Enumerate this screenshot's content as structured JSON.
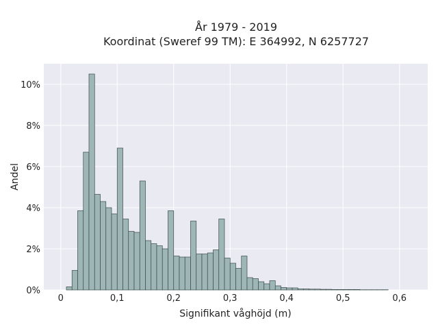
{
  "chart_data": {
    "type": "bar",
    "title": "År 1979 - 2019",
    "subtitle": "Koordinat (Sweref 99 TM): E 364992, N 6257727",
    "xlabel": "Signifikant våghöjd (m)",
    "ylabel": "Andel",
    "xlim": [
      -0.03,
      0.65
    ],
    "ylim": [
      0,
      11
    ],
    "xticks": [
      0,
      0.1,
      0.2,
      0.3,
      0.4,
      0.5,
      0.6
    ],
    "xtick_labels": [
      "0",
      "0,1",
      "0,2",
      "0,3",
      "0,4",
      "0,5",
      "0,6"
    ],
    "yticks": [
      0,
      2,
      4,
      6,
      8,
      10
    ],
    "ytick_labels": [
      "0%",
      "2%",
      "4%",
      "6%",
      "8%",
      "10%"
    ],
    "grid": true,
    "legend": "none",
    "bin_width": 0.01,
    "bin_starts": [
      0.01,
      0.02,
      0.03,
      0.04,
      0.05,
      0.06,
      0.07,
      0.08,
      0.09,
      0.1,
      0.11,
      0.12,
      0.13,
      0.14,
      0.15,
      0.16,
      0.17,
      0.18,
      0.19,
      0.2,
      0.21,
      0.22,
      0.23,
      0.24,
      0.25,
      0.26,
      0.27,
      0.28,
      0.29,
      0.3,
      0.31,
      0.32,
      0.33,
      0.34,
      0.35,
      0.36,
      0.37,
      0.38,
      0.39,
      0.4,
      0.41,
      0.42,
      0.43,
      0.44,
      0.45,
      0.46,
      0.47,
      0.48,
      0.49,
      0.5,
      0.51,
      0.52,
      0.53,
      0.54,
      0.55,
      0.56,
      0.57
    ],
    "values": [
      0.15,
      0.95,
      3.85,
      6.7,
      10.5,
      4.65,
      4.3,
      4.0,
      3.7,
      6.9,
      3.45,
      2.85,
      2.8,
      5.3,
      2.4,
      2.25,
      2.15,
      2.0,
      3.85,
      1.65,
      1.6,
      1.6,
      3.35,
      1.75,
      1.75,
      1.8,
      1.95,
      3.45,
      1.55,
      1.3,
      1.05,
      1.65,
      0.6,
      0.55,
      0.4,
      0.3,
      0.45,
      0.2,
      0.12,
      0.1,
      0.1,
      0.05,
      0.05,
      0.04,
      0.04,
      0.03,
      0.03,
      0.02,
      0.02,
      0.02,
      0.02,
      0.02,
      0.01,
      0.01,
      0.01,
      0.01,
      0.01
    ],
    "colors": {
      "plot_background": "#eaeaf2",
      "bar_fill": "#9fb6b6",
      "bar_edge": "#3a4a4a",
      "grid": "#ffffff"
    }
  }
}
